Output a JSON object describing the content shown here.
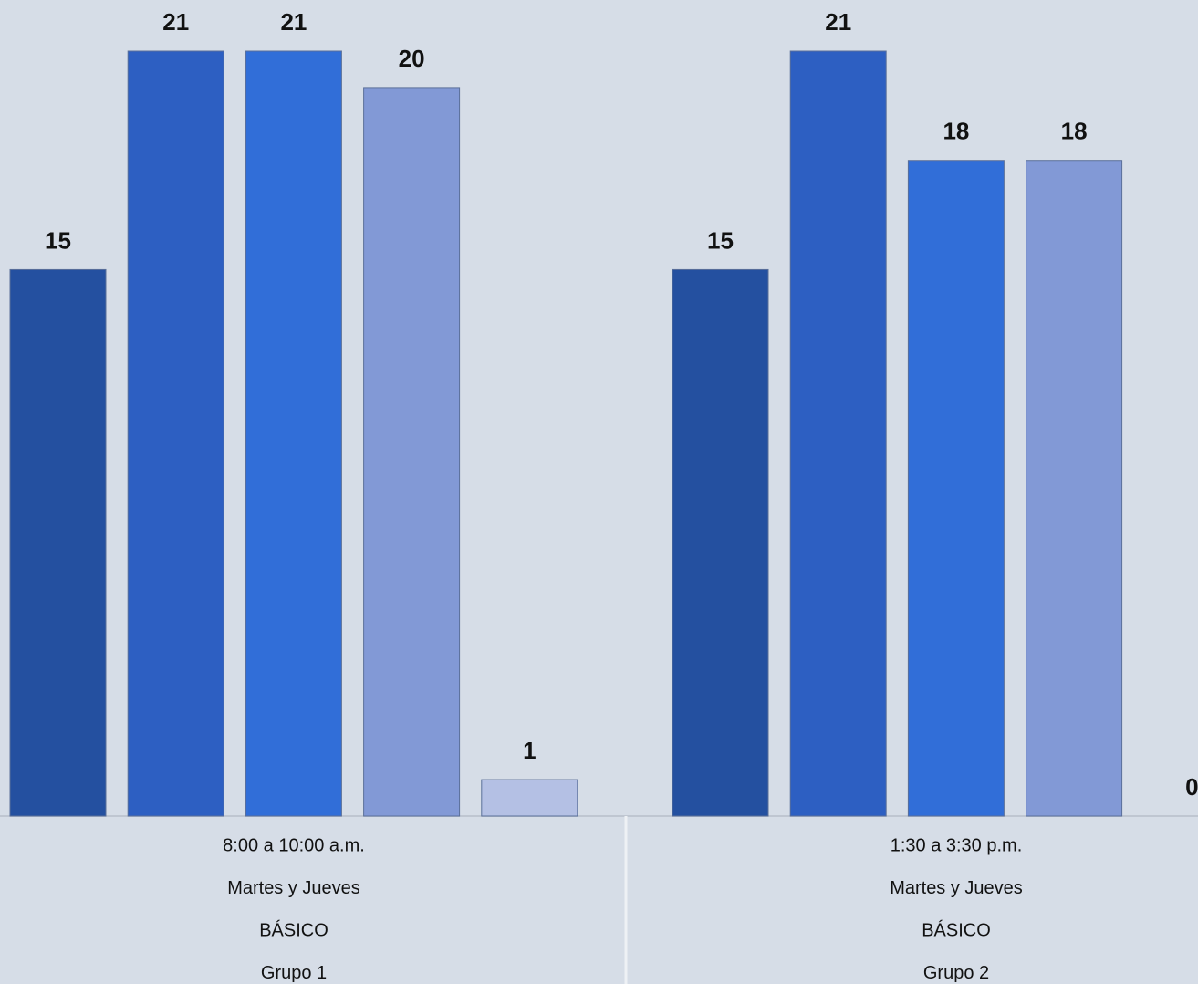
{
  "chart_data": {
    "type": "bar",
    "categories": [
      [
        "8:00 a 10:00 a.m.",
        "Martes y Jueves",
        "BÁSICO",
        "Grupo 1"
      ],
      [
        "1:30 a 3:30 p.m.",
        "Martes y Jueves",
        "BÁSICO",
        "Grupo 2"
      ]
    ],
    "series": [
      {
        "color": "#2450a0",
        "values": [
          15,
          15
        ]
      },
      {
        "color": "#2d5fc2",
        "values": [
          21,
          21
        ]
      },
      {
        "color": "#316ed8",
        "values": [
          21,
          18
        ]
      },
      {
        "color": "#8299d6",
        "values": [
          20,
          18
        ]
      },
      {
        "color": "#b4c0e4",
        "values": [
          1,
          0
        ]
      }
    ]
  }
}
